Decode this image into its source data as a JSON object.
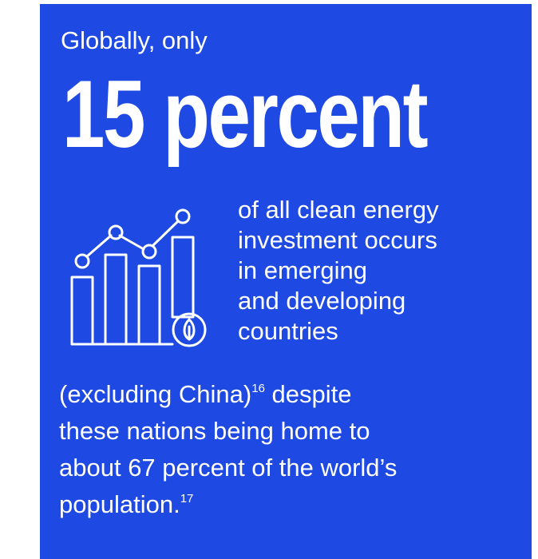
{
  "infographic": {
    "intro": "Globally, only",
    "headline": "15 percent",
    "right_lines": [
      "of all clean energy",
      "investment occurs",
      "in emerging",
      "and developing",
      "countries"
    ],
    "body_line1_pre": "(excluding China)",
    "footnote_16": "16",
    "body_line1_post": " despite",
    "body_line2": "these nations being home to",
    "body_line3": "about 67 percent of the world’s",
    "body_line4_pre": "population.",
    "footnote_17": "17"
  },
  "icon": "bar-chart-growth-with-leaf-icon",
  "colors": {
    "background": "#1e49e2",
    "text": "#ffffff"
  }
}
